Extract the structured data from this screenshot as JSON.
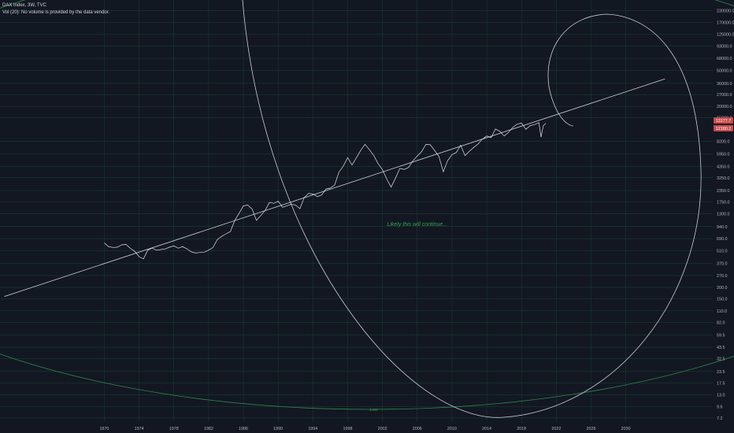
{
  "header": {
    "title": "DAX Index, 3W, TVC",
    "volume_note": "Vol (20): No volume is provided by the data vendor."
  },
  "colors": {
    "background": "#131722",
    "grid": "#1f6b45",
    "price_line": "#e1e3e8",
    "trend_line": "#d1d4dc",
    "big_circle": "#c9ccd4",
    "green_ellipse": "#2e8b4a",
    "annotation": "#2ea44f",
    "price_tag": "#c94a4a",
    "axis_text": "#b2b5be"
  },
  "chart_data": {
    "type": "line",
    "scale": "log",
    "title": "DAX Index, 3W, TVC",
    "xlabel": "",
    "ylabel": "",
    "xlim": [
      1958,
      2040
    ],
    "ylim": [
      6.5,
      300000
    ],
    "grid": true,
    "x_ticks": [
      1970,
      1974,
      1978,
      1982,
      1986,
      1990,
      1994,
      1998,
      2002,
      2006,
      2010,
      2014,
      2018,
      2022,
      2026,
      2030
    ],
    "y_ticks": [
      {
        "v": 7.2,
        "label": "7.2"
      },
      {
        "v": 9.6,
        "label": "9.6"
      },
      {
        "v": 13.0,
        "label": "13.0"
      },
      {
        "v": 17.5,
        "label": "17.5"
      },
      {
        "v": 23.5,
        "label": "23.5"
      },
      {
        "v": 32.5,
        "label": "32.5"
      },
      {
        "v": 43.5,
        "label": "43.5"
      },
      {
        "v": 59.5,
        "label": "59.5"
      },
      {
        "v": 82.0,
        "label": "82.0"
      },
      {
        "v": 110.0,
        "label": "110.0"
      },
      {
        "v": 150.0,
        "label": "150.0"
      },
      {
        "v": 200.0,
        "label": "200.0"
      },
      {
        "v": 270.0,
        "label": "270.0"
      },
      {
        "v": 370.0,
        "label": "370.0"
      },
      {
        "v": 510.0,
        "label": "510.0"
      },
      {
        "v": 690.0,
        "label": "690.0"
      },
      {
        "v": 940.0,
        "label": "940.0"
      },
      {
        "v": 1300.0,
        "label": "1300.0"
      },
      {
        "v": 1750.0,
        "label": "1750.0"
      },
      {
        "v": 2350.0,
        "label": "2350.0"
      },
      {
        "v": 3250.0,
        "label": "3250.0"
      },
      {
        "v": 4350.0,
        "label": "4350.0"
      },
      {
        "v": 5950.0,
        "label": "5950.0"
      },
      {
        "v": 8200.0,
        "label": "8200.0"
      },
      {
        "v": 15000.0,
        "label": "15000.0"
      },
      {
        "v": 20000.0,
        "label": "20000.0"
      },
      {
        "v": 27000.0,
        "label": "27000.0"
      },
      {
        "v": 36000.0,
        "label": "36000.0"
      },
      {
        "v": 50000.0,
        "label": "50000.0"
      },
      {
        "v": 68000.0,
        "label": "68000.0"
      },
      {
        "v": 93000.0,
        "label": "93000.0"
      },
      {
        "v": 125000.0,
        "label": "125000.0"
      },
      {
        "v": 170000.0,
        "label": "170000.0"
      },
      {
        "v": 230000.0,
        "label": "230000.0"
      },
      {
        "v": 315000.0,
        "label": "315000.0"
      }
    ],
    "series": [
      {
        "type": "line",
        "x": [
          1970.0,
          1970.5,
          1971.0,
          1971.5,
          1972.0,
          1972.5,
          1973.0,
          1973.5,
          1974.0,
          1974.5,
          1975.0,
          1975.5,
          1976.0,
          1976.5,
          1977.0,
          1977.5,
          1978.0,
          1978.5,
          1979.0,
          1979.5,
          1980.0,
          1980.5,
          1981.0,
          1981.5,
          1982.0,
          1982.5,
          1983.0,
          1983.5,
          1984.0,
          1984.5,
          1985.0,
          1985.5,
          1986.0,
          1986.5,
          1987.0,
          1987.5,
          1988.0,
          1988.5,
          1989.0,
          1989.5,
          1990.0,
          1990.5,
          1991.0,
          1991.5,
          1992.0,
          1992.5,
          1993.0,
          1993.5,
          1994.0,
          1994.5,
          1995.0,
          1995.5,
          1996.0,
          1996.5,
          1997.0,
          1997.5,
          1998.0,
          1998.5,
          1999.0,
          1999.5,
          2000.0,
          2000.5,
          2001.0,
          2001.5,
          2002.0,
          2002.5,
          2003.0,
          2003.5,
          2004.0,
          2004.5,
          2005.0,
          2005.5,
          2006.0,
          2006.5,
          2007.0,
          2007.5,
          2008.0,
          2008.5,
          2009.0,
          2009.5,
          2010.0,
          2010.5,
          2011.0,
          2011.5,
          2012.0,
          2012.5,
          2013.0,
          2013.5,
          2014.0,
          2014.5,
          2015.0,
          2015.5,
          2016.0,
          2016.5,
          2017.0,
          2017.5,
          2018.0,
          2018.5,
          2019.0,
          2019.5,
          2020.0,
          2020.25,
          2020.5,
          2020.8
        ],
        "values": [
          620,
          560,
          540,
          570,
          600,
          580,
          540,
          500,
          440,
          420,
          500,
          540,
          530,
          520,
          530,
          550,
          570,
          560,
          560,
          520,
          500,
          480,
          490,
          490,
          500,
          560,
          690,
          720,
          780,
          820,
          1100,
          1350,
          1550,
          1600,
          1500,
          1100,
          1250,
          1400,
          1700,
          1750,
          1800,
          1500,
          1600,
          1650,
          1650,
          1500,
          1900,
          2200,
          2200,
          2000,
          2100,
          2400,
          2500,
          2800,
          3700,
          4300,
          5500,
          4500,
          5500,
          6500,
          7400,
          6800,
          5800,
          4600,
          4000,
          3100,
          2600,
          3300,
          4000,
          4000,
          4300,
          5000,
          5700,
          6200,
          7500,
          7800,
          6500,
          5500,
          3800,
          5000,
          6000,
          6200,
          7200,
          5800,
          6500,
          7000,
          7700,
          8500,
          9500,
          9300,
          11000,
          10500,
          9500,
          10300,
          12000,
          12500,
          12800,
          11500,
          12300,
          12500,
          13200,
          9000,
          12500,
          13177
        ]
      }
    ],
    "price_tags": [
      {
        "label": "13177.7",
        "value": 13177.7
      },
      {
        "label": "12180.2",
        "value": 12180.2
      }
    ],
    "annotations": [
      {
        "text": "Likely this will continue...",
        "x": 2006.0,
        "y": 950
      },
      {
        "text": "Low",
        "x": 2001.0,
        "y": 8.6
      }
    ]
  }
}
